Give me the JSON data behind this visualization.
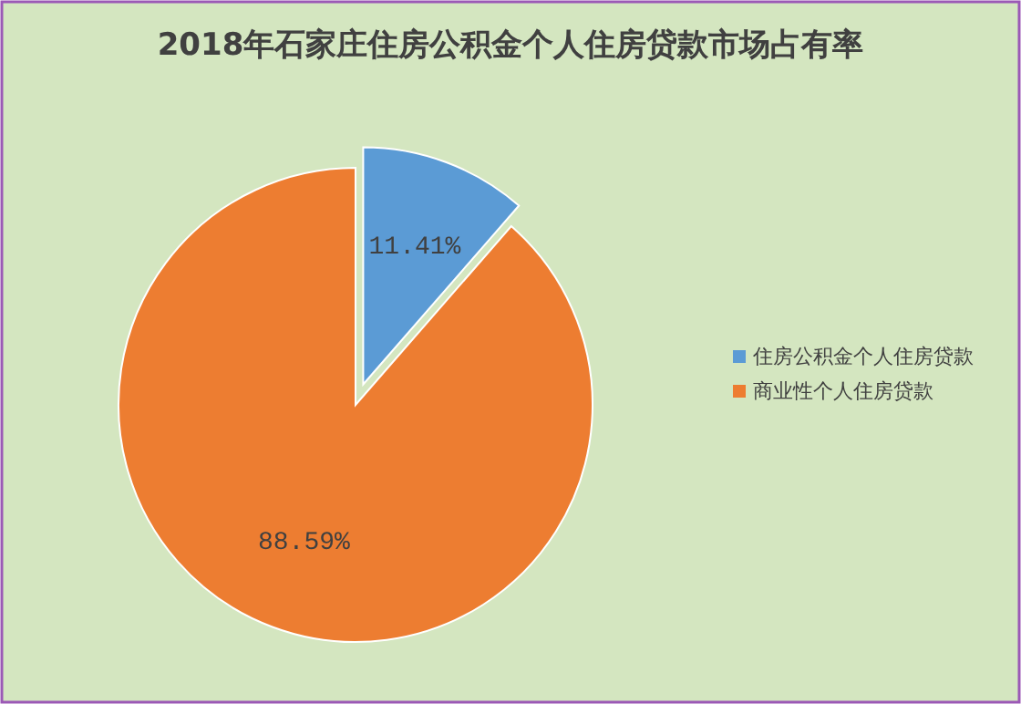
{
  "chart_data": {
    "type": "pie",
    "title": "2018年石家庄住房公积金个人住房贷款市场占有率",
    "categories": [
      "住房公积金个人住房贷款",
      "商业性个人住房贷款"
    ],
    "values": [
      11.41,
      88.59
    ],
    "colors": [
      "#5b9bd5",
      "#ed7d31"
    ],
    "value_labels": [
      "11.41%",
      "88.59%"
    ],
    "legend": "right"
  }
}
